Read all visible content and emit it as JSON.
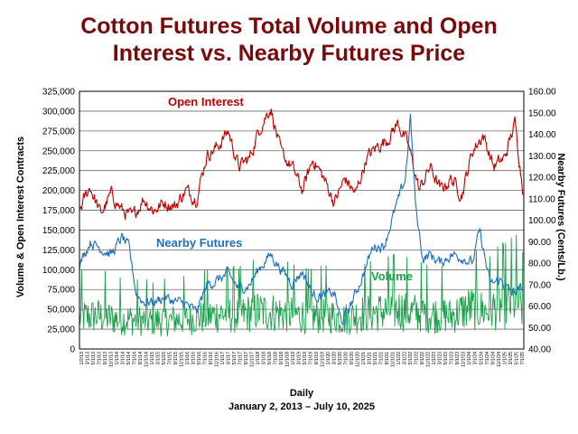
{
  "chart_data": {
    "type": "line",
    "title_line1": "Cotton Futures Total Volume and Open",
    "title_line2": "Interest vs. Nearby Futures Price",
    "xlabel_line1": "Daily",
    "xlabel_line2": "January 2, 2013 – July 10, 2025",
    "ylabel_left": "Volume & Open Interest Contracts",
    "ylabel_right": "Nearby Futures (Cents/Lb.)",
    "ylim_left": [
      0,
      325000
    ],
    "ylim_right": [
      40,
      160
    ],
    "left_ticks": [
      "0",
      "25,000",
      "50,000",
      "75,000",
      "100,000",
      "125,000",
      "150,000",
      "175,000",
      "200,000",
      "225,000",
      "250,000",
      "275,000",
      "300,000",
      "325,000"
    ],
    "right_ticks": [
      "40.00",
      "50.00",
      "60.00",
      "70.00",
      "80.00",
      "90.00",
      "100.00",
      "110.00",
      "120.00",
      "130.00",
      "140.00",
      "150.00",
      "160.00"
    ],
    "x_tick_labels": [
      "1/2/13",
      "3/1/13",
      "5/1/13",
      "7/1/13",
      "9/1/13",
      "11/1/13",
      "1/1/14",
      "3/1/14",
      "5/1/14",
      "7/1/14",
      "9/1/14",
      "11/1/14",
      "1/1/15",
      "3/1/15",
      "5/1/15",
      "7/1/15",
      "9/1/15",
      "11/1/15",
      "1/1/16",
      "3/1/16",
      "5/1/16",
      "7/1/16",
      "9/1/16",
      "11/1/16",
      "1/1/17",
      "3/1/17",
      "5/1/17",
      "7/1/17",
      "9/1/17",
      "11/1/17",
      "1/1/18",
      "3/1/18",
      "5/1/18",
      "7/1/18",
      "9/1/18",
      "11/1/18",
      "1/1/19",
      "3/1/19",
      "5/1/19",
      "7/1/19",
      "9/1/19",
      "11/1/19",
      "1/1/20",
      "3/1/20",
      "5/1/20",
      "7/1/20",
      "9/1/20",
      "11/1/20",
      "1/1/21",
      "3/1/21",
      "5/1/21",
      "7/1/21",
      "9/1/21",
      "11/1/21",
      "1/1/22",
      "3/1/22",
      "5/1/22",
      "7/1/22",
      "9/1/22",
      "11/1/22",
      "1/1/23",
      "3/1/23",
      "5/1/23",
      "7/1/23",
      "9/1/23",
      "11/1/23",
      "1/1/24",
      "3/1/24",
      "5/1/24",
      "7/1/24",
      "9/1/24",
      "11/1/24",
      "1/1/25",
      "3/1/25",
      "5/1/25",
      "7/1/25"
    ],
    "grid": true,
    "series": [
      {
        "name": "Open Interest",
        "axis": "left",
        "color": "#c00000",
        "x": [
          2013.0,
          2013.3,
          2013.6,
          2013.9,
          2014.2,
          2014.5,
          2014.8,
          2015.1,
          2015.4,
          2015.7,
          2016.0,
          2016.3,
          2016.6,
          2016.9,
          2017.2,
          2017.5,
          2017.8,
          2018.1,
          2018.4,
          2018.7,
          2019.0,
          2019.3,
          2019.6,
          2019.9,
          2020.2,
          2020.5,
          2020.8,
          2021.1,
          2021.4,
          2021.7,
          2022.0,
          2022.3,
          2022.6,
          2022.9,
          2023.2,
          2023.5,
          2023.8,
          2024.1,
          2024.4,
          2024.7,
          2025.0,
          2025.3,
          2025.52
        ],
        "y": [
          175000,
          205000,
          170000,
          195000,
          175000,
          165000,
          190000,
          175000,
          185000,
          180000,
          200000,
          190000,
          245000,
          255000,
          275000,
          230000,
          240000,
          280000,
          305000,
          245000,
          230000,
          200000,
          240000,
          215000,
          185000,
          215000,
          195000,
          240000,
          255000,
          265000,
          285000,
          255000,
          200000,
          230000,
          200000,
          215000,
          195000,
          250000,
          270000,
          230000,
          240000,
          285000,
          205000
        ]
      },
      {
        "name": "Nearby Futures",
        "axis": "right",
        "color": "#1f6fbf",
        "x": [
          2013.0,
          2013.3,
          2013.6,
          2013.9,
          2014.2,
          2014.4,
          2014.6,
          2014.8,
          2015.1,
          2015.4,
          2015.7,
          2016.0,
          2016.3,
          2016.6,
          2016.9,
          2017.2,
          2017.5,
          2017.8,
          2018.1,
          2018.4,
          2018.7,
          2019.0,
          2019.3,
          2019.6,
          2019.9,
          2020.2,
          2020.4,
          2020.7,
          2021.0,
          2021.3,
          2021.6,
          2021.9,
          2022.2,
          2022.35,
          2022.5,
          2022.7,
          2022.9,
          2023.2,
          2023.5,
          2023.8,
          2024.1,
          2024.3,
          2024.6,
          2024.9,
          2025.2,
          2025.52
        ],
        "y": [
          79,
          90,
          87,
          84,
          92,
          87,
          66,
          62,
          62,
          64,
          62,
          61,
          57,
          70,
          72,
          75,
          68,
          70,
          78,
          84,
          77,
          71,
          76,
          65,
          65,
          66,
          52,
          62,
          74,
          88,
          88,
          104,
          119,
          148,
          105,
          82,
          84,
          80,
          84,
          83,
          80,
          95,
          70,
          72,
          66,
          68
        ]
      },
      {
        "name": "Volume",
        "axis": "left",
        "color": "#1a9f4a",
        "x": [
          2013.0,
          2013.5,
          2014.0,
          2014.5,
          2015.0,
          2015.5,
          2016.0,
          2016.5,
          2017.0,
          2017.5,
          2018.0,
          2018.5,
          2019.0,
          2019.5,
          2020.0,
          2020.5,
          2021.0,
          2021.5,
          2022.0,
          2022.5,
          2023.0,
          2023.5,
          2024.0,
          2024.5,
          2025.0,
          2025.35,
          2025.52
        ],
        "y": [
          40000,
          42000,
          38000,
          37000,
          35000,
          36000,
          38000,
          40000,
          45000,
          42000,
          48000,
          46000,
          44000,
          41000,
          43000,
          38000,
          45000,
          47000,
          50000,
          46000,
          44000,
          42000,
          52000,
          48000,
          55000,
          60000,
          50000
        ]
      }
    ]
  }
}
